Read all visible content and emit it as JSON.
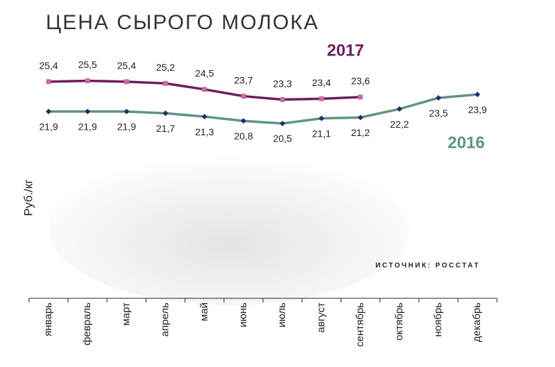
{
  "chart_data": {
    "type": "line",
    "title": "ЦЕНА СЫРОГО МОЛОКА",
    "y_label": "Руб./кг",
    "source": "ИСТОЧНИК: РОССТАТ",
    "categories": [
      "январь",
      "февраль",
      "март",
      "апрель",
      "май",
      "июнь",
      "июль",
      "август",
      "сентябрь",
      "октябрь",
      "ноябрь",
      "декабрь"
    ],
    "ylim": [
      0,
      34
    ],
    "series": [
      {
        "name": "2017",
        "color": "#6b1f5c",
        "marker_color": "#c86aa8",
        "values": [
          25.4,
          25.5,
          25.4,
          25.2,
          24.5,
          23.7,
          23.3,
          23.4,
          23.6,
          null,
          null,
          null
        ],
        "value_labels": [
          "25,4",
          "25,5",
          "25,4",
          "25,2",
          "24,5",
          "23,7",
          "23,3",
          "23,4",
          "23,6",
          null,
          null,
          null
        ]
      },
      {
        "name": "2016",
        "color": "#5e9482",
        "marker_color": "#2a2a6a",
        "values": [
          21.9,
          21.9,
          21.9,
          21.7,
          21.3,
          20.8,
          20.5,
          21.1,
          21.2,
          22.2,
          23.5,
          23.9
        ],
        "value_labels": [
          "21,9",
          "21,9",
          "21,9",
          "21,7",
          "21,3",
          "20,8",
          "20,5",
          "21,1",
          "21,2",
          "22,2",
          "23,5",
          "23,9"
        ]
      }
    ]
  }
}
